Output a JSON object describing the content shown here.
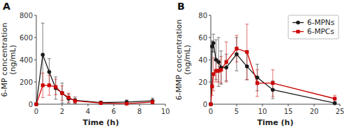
{
  "chart_data": [
    {
      "type": "line",
      "title": "A",
      "xlabel": "Time (h)",
      "ylabel": "6-MP concentration\n(ng/mL)",
      "xlim": [
        0,
        10
      ],
      "ylim": [
        0,
        800
      ],
      "xticks": [
        0,
        2,
        4,
        6,
        8,
        10
      ],
      "yticks": [
        0,
        200,
        400,
        600,
        800
      ],
      "grid": false,
      "x": [
        0,
        0.5,
        1,
        1.5,
        2,
        2.5,
        3,
        5,
        7,
        9
      ],
      "series": [
        {
          "name": "6-MPNs",
          "color": "#1a1a1a",
          "marker": "circle",
          "values": [
            0,
            445,
            290,
            145,
            100,
            50,
            35,
            15,
            20,
            30
          ],
          "errors": [
            0,
            285,
            120,
            100,
            90,
            40,
            30,
            12,
            18,
            25
          ]
        },
        {
          "name": "6-MPCs",
          "color": "#cc0000",
          "marker": "square",
          "values": [
            0,
            170,
            170,
            155,
            100,
            60,
            30,
            10,
            5,
            20
          ],
          "errors": [
            0,
            110,
            90,
            70,
            65,
            40,
            20,
            8,
            5,
            15
          ]
        }
      ]
    },
    {
      "type": "line",
      "title": "B",
      "xlabel": "Time (h)",
      "ylabel": "6-MMP concentration\n(ng/mL)",
      "xlim": [
        0,
        25
      ],
      "ylim": [
        0,
        80
      ],
      "xticks": [
        0,
        5,
        10,
        15,
        20,
        25
      ],
      "yticks": [
        0,
        20,
        40,
        60,
        80
      ],
      "grid": false,
      "legend": "upper right",
      "x": [
        0,
        0.25,
        0.5,
        1,
        1.5,
        2,
        3,
        5,
        7,
        9,
        12,
        24
      ],
      "series": [
        {
          "name": "6-MPNs",
          "color": "#1a1a1a",
          "marker": "circle",
          "values": [
            0,
            52,
            55,
            40,
            38,
            33,
            33,
            45,
            34,
            24,
            13,
            1
          ],
          "errors": [
            0,
            5,
            8,
            18,
            22,
            15,
            12,
            15,
            12,
            12,
            8,
            1
          ]
        },
        {
          "name": "6-MPCs",
          "color": "#cc0000",
          "marker": "square",
          "values": [
            0,
            16,
            27,
            30,
            30,
            31,
            38,
            50,
            47,
            19,
            19,
            5
          ],
          "errors": [
            0,
            8,
            15,
            10,
            10,
            12,
            18,
            12,
            25,
            12,
            12,
            3
          ]
        }
      ]
    }
  ]
}
